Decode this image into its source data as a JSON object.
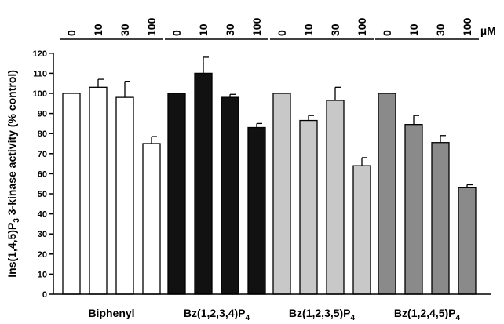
{
  "chart_data": {
    "type": "bar",
    "ylabel": {
      "prefix": "Ins(1,4,5)P",
      "sub": "3",
      "suffix": " 3-kinase activity (% control)"
    },
    "ylim": [
      0,
      120
    ],
    "yticks": [
      0,
      10,
      20,
      30,
      40,
      50,
      60,
      70,
      80,
      90,
      100,
      110,
      120
    ],
    "concentration_unit": "µM",
    "concentrations": [
      "0",
      "10",
      "30",
      "100"
    ],
    "groups": [
      {
        "label": "Biphenyl",
        "label_sub": "",
        "fill": "#ffffff",
        "values": [
          100,
          103,
          98,
          75
        ],
        "errors": [
          0,
          4,
          8,
          3.5
        ]
      },
      {
        "label": "Bz(1,2,3,4)P",
        "label_sub": "4",
        "fill": "#111111",
        "values": [
          100,
          110,
          98,
          83
        ],
        "errors": [
          0,
          8,
          1.5,
          2
        ]
      },
      {
        "label": "Bz(1,2,3,5)P",
        "label_sub": "4",
        "fill": "#c8c8c8",
        "values": [
          100,
          86.5,
          96.5,
          64
        ],
        "errors": [
          0,
          2.5,
          6.5,
          4
        ]
      },
      {
        "label": "Bz(1,2,4,5)P",
        "label_sub": "4",
        "fill": "#8a8a8a",
        "values": [
          100,
          84.5,
          75.5,
          53
        ],
        "errors": [
          0,
          4.5,
          3.5,
          1.5
        ]
      }
    ]
  }
}
